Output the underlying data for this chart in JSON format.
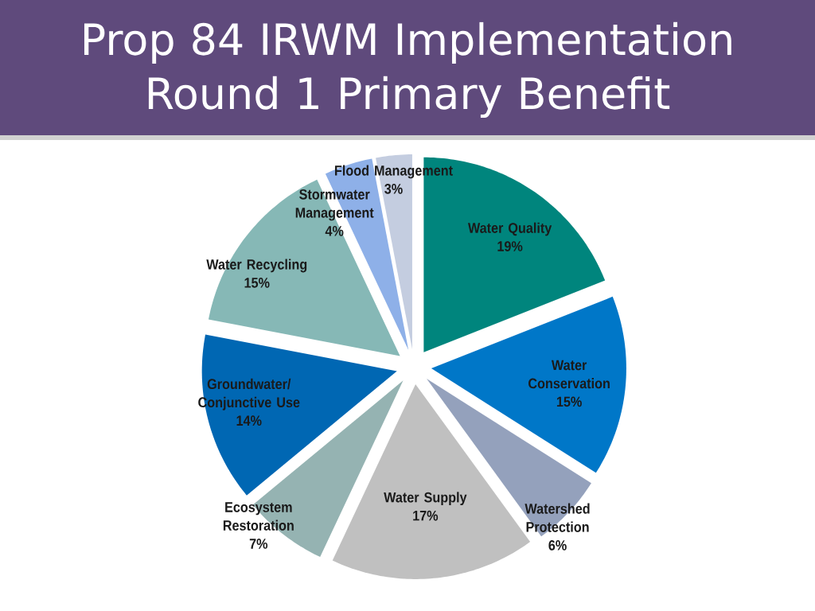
{
  "chart_data": {
    "type": "pie",
    "title": "Prop 84 IRWM Implementation Round 1 Primary Benefit",
    "categories": [
      "Water Quality",
      "Water Conservation",
      "Watershed Protection",
      "Water Supply",
      "Ecosystem Restoration",
      "Groundwater/ Conjunctive Use",
      "Water Recycling",
      "Stormwater Management",
      "Flood Management"
    ],
    "values": [
      19,
      15,
      6,
      17,
      7,
      14,
      15,
      4,
      3
    ],
    "colors": [
      "#00857d",
      "#0077c8",
      "#94a1bc",
      "#c0c0c0",
      "#95b3b2",
      "#0067b3",
      "#86b8b6",
      "#8eb0e8",
      "#c4cde0"
    ],
    "value_labels": [
      "19%",
      "15%",
      "6%",
      "17%",
      "7%",
      "14%",
      "15%",
      "4%",
      "3%"
    ]
  }
}
